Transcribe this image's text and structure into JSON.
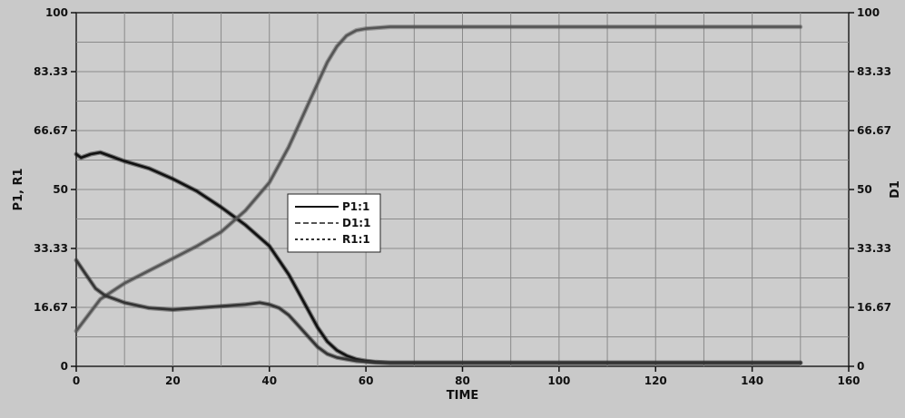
{
  "chart_data": {
    "type": "line",
    "xlabel": "TIME",
    "ylabel_left": "P1, R1",
    "ylabel_right": "D1",
    "xlim": [
      0,
      160
    ],
    "ylim_left": [
      0,
      100
    ],
    "ylim_right": [
      0,
      100
    ],
    "x_ticks": [
      "0",
      "20",
      "40",
      "60",
      "80",
      "100",
      "120",
      "140",
      "160"
    ],
    "y_ticks_left": [
      "0",
      "16.67",
      "33.33",
      "50",
      "66.67",
      "83.33",
      "100"
    ],
    "y_ticks_right": [
      "0",
      "16.67",
      "33.33",
      "50",
      "66.67",
      "83.33",
      "100"
    ],
    "grid": true,
    "legend_position": "center",
    "series": [
      {
        "name": "P1:1",
        "axis": "left",
        "style": "solid",
        "color": "#111111",
        "x": [
          0,
          1,
          3,
          5,
          10,
          15,
          20,
          25,
          30,
          35,
          40,
          42,
          44,
          46,
          48,
          50,
          52,
          54,
          56,
          58,
          60,
          62,
          65,
          70,
          80,
          90,
          100,
          110,
          120,
          130,
          140,
          150
        ],
        "y": [
          60,
          59,
          60,
          60.5,
          58,
          56,
          53,
          49.5,
          45,
          40,
          34,
          30,
          26,
          21,
          16,
          11,
          7,
          4.5,
          3,
          2,
          1.5,
          1.2,
          1,
          1,
          1,
          1,
          1,
          1,
          1,
          1,
          1,
          1
        ]
      },
      {
        "name": "D1:1",
        "axis": "right",
        "style": "dashed",
        "color": "#555555",
        "x": [
          0,
          5,
          10,
          15,
          20,
          25,
          30,
          35,
          40,
          42,
          44,
          46,
          48,
          50,
          52,
          54,
          56,
          58,
          60,
          65,
          70,
          80,
          90,
          100,
          110,
          120,
          130,
          140,
          150
        ],
        "y": [
          10,
          19,
          23.5,
          27,
          30.5,
          34,
          38,
          44,
          52,
          57,
          62,
          68,
          74,
          80,
          86,
          90.5,
          93.5,
          95,
          95.5,
          96,
          96,
          96,
          96,
          96,
          96,
          96,
          96,
          96,
          96
        ]
      },
      {
        "name": "R1:1",
        "axis": "left",
        "style": "dashed",
        "color": "#333333",
        "x": [
          0,
          2,
          4,
          6,
          8,
          10,
          15,
          20,
          25,
          30,
          35,
          38,
          40,
          42,
          44,
          46,
          48,
          50,
          52,
          54,
          56,
          58,
          60,
          62,
          65,
          70,
          80,
          90,
          100,
          110,
          120,
          130,
          140,
          150
        ],
        "y": [
          30,
          26,
          22,
          20,
          19,
          18,
          16.5,
          16,
          16.5,
          17,
          17.5,
          18,
          17.5,
          16.5,
          14.5,
          11.5,
          8.5,
          5.5,
          3.5,
          2.5,
          2,
          1.5,
          1.3,
          1.1,
          1,
          1,
          1,
          1,
          1,
          1,
          1,
          1,
          1,
          1
        ]
      }
    ]
  }
}
